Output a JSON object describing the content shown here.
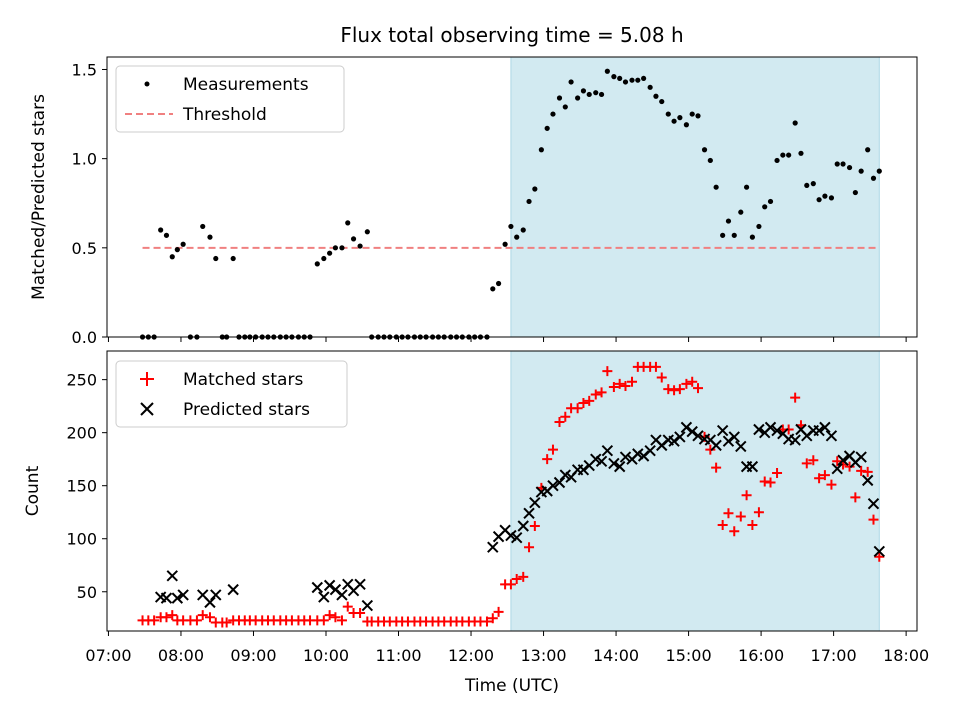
{
  "chart_data": {
    "type": "scatter",
    "title": "Flux total observing time = 5.08 h",
    "xlabel": "Time (UTC)",
    "x_ticks": [
      "07:00",
      "08:00",
      "09:00",
      "10:00",
      "11:00",
      "12:00",
      "13:00",
      "14:00",
      "15:00",
      "16:00",
      "17:00",
      "18:00"
    ],
    "xlim_hours": [
      6.98,
      18.15
    ],
    "shaded_interval_hours": [
      12.55,
      17.63
    ],
    "colors": {
      "measurement": "#000000",
      "threshold": "#f08080",
      "matched": "#ff0000",
      "predicted": "#000000",
      "shade": "#add8e6"
    },
    "top": {
      "ylabel": "Matched/Predicted stars",
      "ylim": [
        0,
        1.57
      ],
      "y_ticks": [
        "0.0",
        "0.5",
        "1.0",
        "1.5"
      ],
      "threshold": 0.5,
      "threshold_x_hours": [
        7.47,
        17.63
      ],
      "legend": [
        "Measurements",
        "Threshold"
      ],
      "measurements": [
        [
          7.47,
          0
        ],
        [
          7.55,
          0
        ],
        [
          7.63,
          0
        ],
        [
          7.72,
          0.6
        ],
        [
          7.8,
          0.57
        ],
        [
          7.88,
          0.45
        ],
        [
          7.95,
          0.49
        ],
        [
          8.03,
          0.52
        ],
        [
          8.13,
          0
        ],
        [
          8.22,
          0
        ],
        [
          8.3,
          0.62
        ],
        [
          8.4,
          0.56
        ],
        [
          8.48,
          0.44
        ],
        [
          8.57,
          0
        ],
        [
          8.63,
          0
        ],
        [
          8.72,
          0.44
        ],
        [
          8.8,
          0
        ],
        [
          8.88,
          0
        ],
        [
          8.95,
          0
        ],
        [
          9.03,
          0
        ],
        [
          9.12,
          0
        ],
        [
          9.2,
          0
        ],
        [
          9.28,
          0
        ],
        [
          9.37,
          0
        ],
        [
          9.45,
          0
        ],
        [
          9.53,
          0
        ],
        [
          9.62,
          0
        ],
        [
          9.7,
          0
        ],
        [
          9.78,
          0
        ],
        [
          9.88,
          0.41
        ],
        [
          9.97,
          0.44
        ],
        [
          10.05,
          0.47
        ],
        [
          10.13,
          0.5
        ],
        [
          10.22,
          0.5
        ],
        [
          10.3,
          0.64
        ],
        [
          10.38,
          0.55
        ],
        [
          10.47,
          0.51
        ],
        [
          10.57,
          0.59
        ],
        [
          10.63,
          0
        ],
        [
          10.72,
          0
        ],
        [
          10.8,
          0
        ],
        [
          10.88,
          0
        ],
        [
          10.97,
          0
        ],
        [
          11.05,
          0
        ],
        [
          11.13,
          0
        ],
        [
          11.22,
          0
        ],
        [
          11.3,
          0
        ],
        [
          11.38,
          0
        ],
        [
          11.47,
          0
        ],
        [
          11.55,
          0
        ],
        [
          11.63,
          0
        ],
        [
          11.72,
          0
        ],
        [
          11.8,
          0
        ],
        [
          11.88,
          0
        ],
        [
          11.97,
          0
        ],
        [
          12.05,
          0
        ],
        [
          12.13,
          0
        ],
        [
          12.22,
          0
        ],
        [
          12.3,
          0.27
        ],
        [
          12.38,
          0.3
        ],
        [
          12.47,
          0.52
        ],
        [
          12.55,
          0.62
        ],
        [
          12.63,
          0.56
        ],
        [
          12.72,
          0.6
        ],
        [
          12.8,
          0.76
        ],
        [
          12.88,
          0.83
        ],
        [
          12.97,
          1.05
        ],
        [
          13.05,
          1.17
        ],
        [
          13.13,
          1.25
        ],
        [
          13.22,
          1.34
        ],
        [
          13.3,
          1.29
        ],
        [
          13.38,
          1.43
        ],
        [
          13.47,
          1.34
        ],
        [
          13.55,
          1.38
        ],
        [
          13.63,
          1.36
        ],
        [
          13.72,
          1.37
        ],
        [
          13.8,
          1.36
        ],
        [
          13.88,
          1.49
        ],
        [
          13.97,
          1.46
        ],
        [
          14.05,
          1.45
        ],
        [
          14.13,
          1.43
        ],
        [
          14.22,
          1.44
        ],
        [
          14.3,
          1.44
        ],
        [
          14.38,
          1.45
        ],
        [
          14.47,
          1.4
        ],
        [
          14.55,
          1.35
        ],
        [
          14.63,
          1.32
        ],
        [
          14.72,
          1.25
        ],
        [
          14.8,
          1.21
        ],
        [
          14.88,
          1.23
        ],
        [
          14.97,
          1.19
        ],
        [
          15.05,
          1.25
        ],
        [
          15.13,
          1.24
        ],
        [
          15.22,
          1.05
        ],
        [
          15.3,
          0.99
        ],
        [
          15.38,
          0.84
        ],
        [
          15.47,
          0.57
        ],
        [
          15.55,
          0.65
        ],
        [
          15.63,
          0.57
        ],
        [
          15.72,
          0.7
        ],
        [
          15.8,
          0.84
        ],
        [
          15.88,
          0.56
        ],
        [
          15.97,
          0.62
        ],
        [
          16.05,
          0.73
        ],
        [
          16.13,
          0.76
        ],
        [
          16.22,
          0.99
        ],
        [
          16.3,
          1.02
        ],
        [
          16.38,
          1.02
        ],
        [
          16.47,
          1.2
        ],
        [
          16.55,
          1.03
        ],
        [
          16.63,
          0.85
        ],
        [
          16.72,
          0.86
        ],
        [
          16.8,
          0.77
        ],
        [
          16.88,
          0.79
        ],
        [
          16.97,
          0.78
        ],
        [
          17.05,
          0.97
        ],
        [
          17.13,
          0.97
        ],
        [
          17.22,
          0.95
        ],
        [
          17.3,
          0.81
        ],
        [
          17.38,
          0.93
        ],
        [
          17.47,
          1.05
        ],
        [
          17.55,
          0.89
        ],
        [
          17.63,
          0.93
        ]
      ]
    },
    "bottom": {
      "ylabel": "Count",
      "ylim": [
        13,
        277
      ],
      "y_ticks": [
        "50",
        "100",
        "150",
        "200",
        "250"
      ],
      "legend": [
        "Matched stars",
        "Predicted stars"
      ],
      "matched": [
        [
          7.47,
          23
        ],
        [
          7.55,
          23
        ],
        [
          7.63,
          23
        ],
        [
          7.72,
          26
        ],
        [
          7.8,
          26
        ],
        [
          7.88,
          28
        ],
        [
          7.95,
          23
        ],
        [
          8.03,
          23
        ],
        [
          8.13,
          23
        ],
        [
          8.22,
          23
        ],
        [
          8.3,
          28
        ],
        [
          8.4,
          26
        ],
        [
          8.48,
          21
        ],
        [
          8.57,
          21
        ],
        [
          8.63,
          21
        ],
        [
          8.72,
          23
        ],
        [
          8.8,
          23
        ],
        [
          8.88,
          23
        ],
        [
          8.95,
          23
        ],
        [
          9.03,
          23
        ],
        [
          9.12,
          23
        ],
        [
          9.2,
          23
        ],
        [
          9.28,
          23
        ],
        [
          9.37,
          23
        ],
        [
          9.45,
          23
        ],
        [
          9.53,
          23
        ],
        [
          9.62,
          23
        ],
        [
          9.7,
          23
        ],
        [
          9.78,
          23
        ],
        [
          9.88,
          23
        ],
        [
          9.97,
          23
        ],
        [
          10.05,
          28
        ],
        [
          10.13,
          26
        ],
        [
          10.22,
          23
        ],
        [
          10.3,
          36
        ],
        [
          10.38,
          30
        ],
        [
          10.47,
          30
        ],
        [
          10.57,
          22
        ],
        [
          10.63,
          22
        ],
        [
          10.72,
          22
        ],
        [
          10.8,
          22
        ],
        [
          10.88,
          22
        ],
        [
          10.97,
          22
        ],
        [
          11.05,
          22
        ],
        [
          11.13,
          22
        ],
        [
          11.22,
          22
        ],
        [
          11.3,
          22
        ],
        [
          11.38,
          22
        ],
        [
          11.47,
          22
        ],
        [
          11.55,
          22
        ],
        [
          11.63,
          22
        ],
        [
          11.72,
          22
        ],
        [
          11.8,
          22
        ],
        [
          11.88,
          22
        ],
        [
          11.97,
          22
        ],
        [
          12.05,
          22
        ],
        [
          12.13,
          22
        ],
        [
          12.22,
          22
        ],
        [
          12.3,
          25
        ],
        [
          12.38,
          31
        ],
        [
          12.47,
          57
        ],
        [
          12.55,
          57
        ],
        [
          12.63,
          62
        ],
        [
          12.72,
          64
        ],
        [
          12.8,
          92
        ],
        [
          12.88,
          112
        ],
        [
          12.97,
          148
        ],
        [
          13.05,
          175
        ],
        [
          13.13,
          184
        ],
        [
          13.22,
          210
        ],
        [
          13.3,
          215
        ],
        [
          13.38,
          223
        ],
        [
          13.47,
          223
        ],
        [
          13.55,
          228
        ],
        [
          13.63,
          230
        ],
        [
          13.72,
          236
        ],
        [
          13.8,
          238
        ],
        [
          13.88,
          258
        ],
        [
          13.97,
          243
        ],
        [
          14.05,
          246
        ],
        [
          14.13,
          244
        ],
        [
          14.22,
          248
        ],
        [
          14.3,
          262
        ],
        [
          14.38,
          262
        ],
        [
          14.47,
          262
        ],
        [
          14.55,
          262
        ],
        [
          14.63,
          252
        ],
        [
          14.72,
          241
        ],
        [
          14.8,
          240
        ],
        [
          14.88,
          241
        ],
        [
          14.97,
          246
        ],
        [
          15.05,
          248
        ],
        [
          15.13,
          242
        ],
        [
          15.22,
          196
        ],
        [
          15.3,
          184
        ],
        [
          15.38,
          167
        ],
        [
          15.47,
          113
        ],
        [
          15.55,
          124
        ],
        [
          15.63,
          107
        ],
        [
          15.72,
          121
        ],
        [
          15.8,
          141
        ],
        [
          15.88,
          113
        ],
        [
          15.97,
          125
        ],
        [
          16.05,
          154
        ],
        [
          16.13,
          153
        ],
        [
          16.22,
          162
        ],
        [
          16.3,
          203
        ],
        [
          16.38,
          203
        ],
        [
          16.47,
          233
        ],
        [
          16.55,
          207
        ],
        [
          16.63,
          171
        ],
        [
          16.72,
          174
        ],
        [
          16.8,
          157
        ],
        [
          16.88,
          160
        ],
        [
          16.97,
          151
        ],
        [
          17.05,
          173
        ],
        [
          17.13,
          170
        ],
        [
          17.22,
          168
        ],
        [
          17.3,
          139
        ],
        [
          17.38,
          164
        ],
        [
          17.47,
          163
        ],
        [
          17.55,
          118
        ],
        [
          17.63,
          83
        ]
      ],
      "predicted": [
        [
          7.72,
          45
        ],
        [
          7.8,
          44
        ],
        [
          7.88,
          65
        ],
        [
          7.95,
          44
        ],
        [
          8.03,
          47
        ],
        [
          8.3,
          47
        ],
        [
          8.4,
          40
        ],
        [
          8.48,
          47
        ],
        [
          8.72,
          52
        ],
        [
          9.88,
          54
        ],
        [
          9.97,
          45
        ],
        [
          10.05,
          56
        ],
        [
          10.13,
          52
        ],
        [
          10.22,
          47
        ],
        [
          10.3,
          57
        ],
        [
          10.38,
          51
        ],
        [
          10.47,
          57
        ],
        [
          10.57,
          37
        ],
        [
          12.3,
          92
        ],
        [
          12.38,
          102
        ],
        [
          12.47,
          108
        ],
        [
          12.55,
          103
        ],
        [
          12.63,
          101
        ],
        [
          12.72,
          112
        ],
        [
          12.8,
          124
        ],
        [
          12.88,
          134
        ],
        [
          12.97,
          144
        ],
        [
          13.05,
          145
        ],
        [
          13.13,
          150
        ],
        [
          13.22,
          153
        ],
        [
          13.3,
          160
        ],
        [
          13.38,
          158
        ],
        [
          13.47,
          165
        ],
        [
          13.55,
          165
        ],
        [
          13.63,
          169
        ],
        [
          13.72,
          175
        ],
        [
          13.8,
          173
        ],
        [
          13.88,
          183
        ],
        [
          13.97,
          171
        ],
        [
          14.05,
          168
        ],
        [
          14.13,
          177
        ],
        [
          14.22,
          175
        ],
        [
          14.3,
          180
        ],
        [
          14.38,
          178
        ],
        [
          14.47,
          183
        ],
        [
          14.55,
          193
        ],
        [
          14.63,
          188
        ],
        [
          14.72,
          193
        ],
        [
          14.8,
          192
        ],
        [
          14.88,
          196
        ],
        [
          14.97,
          205
        ],
        [
          15.05,
          201
        ],
        [
          15.13,
          197
        ],
        [
          15.22,
          194
        ],
        [
          15.3,
          193
        ],
        [
          15.38,
          188
        ],
        [
          15.47,
          202
        ],
        [
          15.55,
          192
        ],
        [
          15.63,
          196
        ],
        [
          15.72,
          187
        ],
        [
          15.8,
          168
        ],
        [
          15.88,
          168
        ],
        [
          15.97,
          203
        ],
        [
          16.05,
          200
        ],
        [
          16.13,
          205
        ],
        [
          16.22,
          202
        ],
        [
          16.3,
          199
        ],
        [
          16.38,
          194
        ],
        [
          16.47,
          193
        ],
        [
          16.55,
          203
        ],
        [
          16.63,
          197
        ],
        [
          16.72,
          202
        ],
        [
          16.8,
          202
        ],
        [
          16.88,
          205
        ],
        [
          16.97,
          197
        ],
        [
          17.05,
          166
        ],
        [
          17.13,
          174
        ],
        [
          17.22,
          178
        ],
        [
          17.3,
          172
        ],
        [
          17.38,
          177
        ],
        [
          17.47,
          155
        ],
        [
          17.55,
          133
        ],
        [
          17.63,
          88
        ]
      ]
    }
  }
}
